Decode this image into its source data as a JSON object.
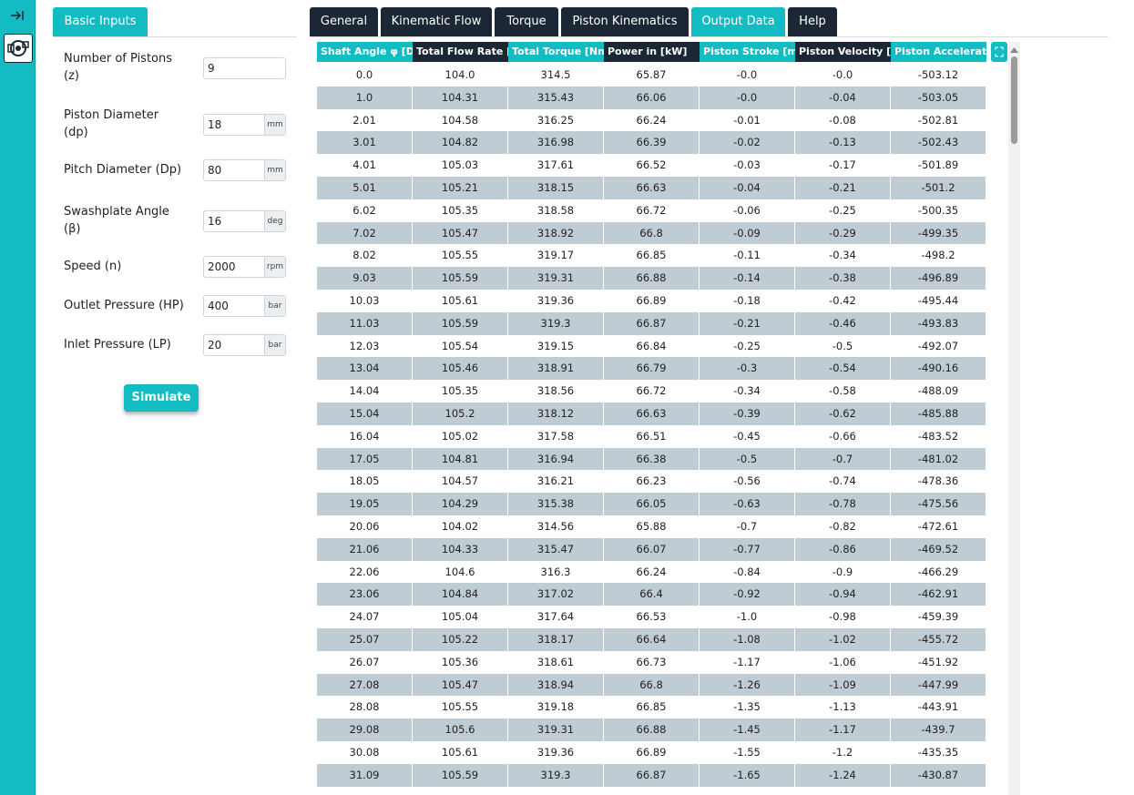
{
  "sidebar_tab": "Basic Inputs",
  "inputs": [
    {
      "name": "Number of Pistons",
      "symbol": "(z)",
      "value": "9"
    },
    {
      "name": "Piston Diameter",
      "symbol": "(dp)",
      "value": "18",
      "unit": "mm"
    },
    {
      "name": "Pitch Diameter",
      "symbol": "(Dp)",
      "value": "80",
      "unit": "mm"
    },
    {
      "name": "Swashplate Angle",
      "symbol": "(β)",
      "value": "16",
      "unit": "deg"
    },
    {
      "name": "Speed",
      "symbol": "(n)",
      "value": "2000",
      "unit": "rpm"
    },
    {
      "name": "Outlet Pressure",
      "symbol": "(HP)",
      "value": "400",
      "unit": "bar"
    },
    {
      "name": "Inlet Pressure",
      "symbol": "(LP)",
      "value": "20",
      "unit": "bar"
    }
  ],
  "button": "Simulate",
  "tabs": [
    "General",
    "Kinematic Flow",
    "Torque",
    "Piston Kinematics",
    "Output Data",
    "Help"
  ],
  "table": {
    "columns": [
      "Shaft Angle φ [Deg",
      "Total Flow Rate [l/",
      "Total Torque [Nm",
      "Power in [kW]",
      "Piston Stroke [mm",
      "Piston Velocity [m",
      "Piston Acceleratio"
    ],
    "rows": [
      [
        "0.0",
        "104.0",
        "314.5",
        "65.87",
        "-0.0",
        "-0.0",
        "-503.12"
      ],
      [
        "1.0",
        "104.31",
        "315.43",
        "66.06",
        "-0.0",
        "-0.04",
        "-503.05"
      ],
      [
        "2.01",
        "104.58",
        "316.25",
        "66.24",
        "-0.01",
        "-0.08",
        "-502.81"
      ],
      [
        "3.01",
        "104.82",
        "316.98",
        "66.39",
        "-0.02",
        "-0.13",
        "-502.43"
      ],
      [
        "4.01",
        "105.03",
        "317.61",
        "66.52",
        "-0.03",
        "-0.17",
        "-501.89"
      ],
      [
        "5.01",
        "105.21",
        "318.15",
        "66.63",
        "-0.04",
        "-0.21",
        "-501.2"
      ],
      [
        "6.02",
        "105.35",
        "318.58",
        "66.72",
        "-0.06",
        "-0.25",
        "-500.35"
      ],
      [
        "7.02",
        "105.47",
        "318.92",
        "66.8",
        "-0.09",
        "-0.29",
        "-499.35"
      ],
      [
        "8.02",
        "105.55",
        "319.17",
        "66.85",
        "-0.11",
        "-0.34",
        "-498.2"
      ],
      [
        "9.03",
        "105.59",
        "319.31",
        "66.88",
        "-0.14",
        "-0.38",
        "-496.89"
      ],
      [
        "10.03",
        "105.61",
        "319.36",
        "66.89",
        "-0.18",
        "-0.42",
        "-495.44"
      ],
      [
        "11.03",
        "105.59",
        "319.3",
        "66.87",
        "-0.21",
        "-0.46",
        "-493.83"
      ],
      [
        "12.03",
        "105.54",
        "319.15",
        "66.84",
        "-0.25",
        "-0.5",
        "-492.07"
      ],
      [
        "13.04",
        "105.46",
        "318.91",
        "66.79",
        "-0.3",
        "-0.54",
        "-490.16"
      ],
      [
        "14.04",
        "105.35",
        "318.56",
        "66.72",
        "-0.34",
        "-0.58",
        "-488.09"
      ],
      [
        "15.04",
        "105.2",
        "318.12",
        "66.63",
        "-0.39",
        "-0.62",
        "-485.88"
      ],
      [
        "16.04",
        "105.02",
        "317.58",
        "66.51",
        "-0.45",
        "-0.66",
        "-483.52"
      ],
      [
        "17.05",
        "104.81",
        "316.94",
        "66.38",
        "-0.5",
        "-0.7",
        "-481.02"
      ],
      [
        "18.05",
        "104.57",
        "316.21",
        "66.23",
        "-0.56",
        "-0.74",
        "-478.36"
      ],
      [
        "19.05",
        "104.29",
        "315.38",
        "66.05",
        "-0.63",
        "-0.78",
        "-475.56"
      ],
      [
        "20.06",
        "104.02",
        "314.56",
        "65.88",
        "-0.7",
        "-0.82",
        "-472.61"
      ],
      [
        "21.06",
        "104.33",
        "315.47",
        "66.07",
        "-0.77",
        "-0.86",
        "-469.52"
      ],
      [
        "22.06",
        "104.6",
        "316.3",
        "66.24",
        "-0.84",
        "-0.9",
        "-466.29"
      ],
      [
        "23.06",
        "104.84",
        "317.02",
        "66.4",
        "-0.92",
        "-0.94",
        "-462.91"
      ],
      [
        "24.07",
        "105.04",
        "317.64",
        "66.53",
        "-1.0",
        "-0.98",
        "-459.39"
      ],
      [
        "25.07",
        "105.22",
        "318.17",
        "66.64",
        "-1.08",
        "-1.02",
        "-455.72"
      ],
      [
        "26.07",
        "105.36",
        "318.61",
        "66.73",
        "-1.17",
        "-1.06",
        "-451.92"
      ],
      [
        "27.08",
        "105.47",
        "318.94",
        "66.8",
        "-1.26",
        "-1.09",
        "-447.99"
      ],
      [
        "28.08",
        "105.55",
        "319.18",
        "66.85",
        "-1.35",
        "-1.13",
        "-443.91"
      ],
      [
        "29.08",
        "105.6",
        "319.31",
        "66.88",
        "-1.45",
        "-1.17",
        "-439.7"
      ],
      [
        "30.08",
        "105.61",
        "319.36",
        "66.89",
        "-1.55",
        "-1.2",
        "-435.35"
      ],
      [
        "31.09",
        "105.59",
        "319.3",
        "66.87",
        "-1.65",
        "-1.24",
        "-430.87"
      ]
    ]
  }
}
